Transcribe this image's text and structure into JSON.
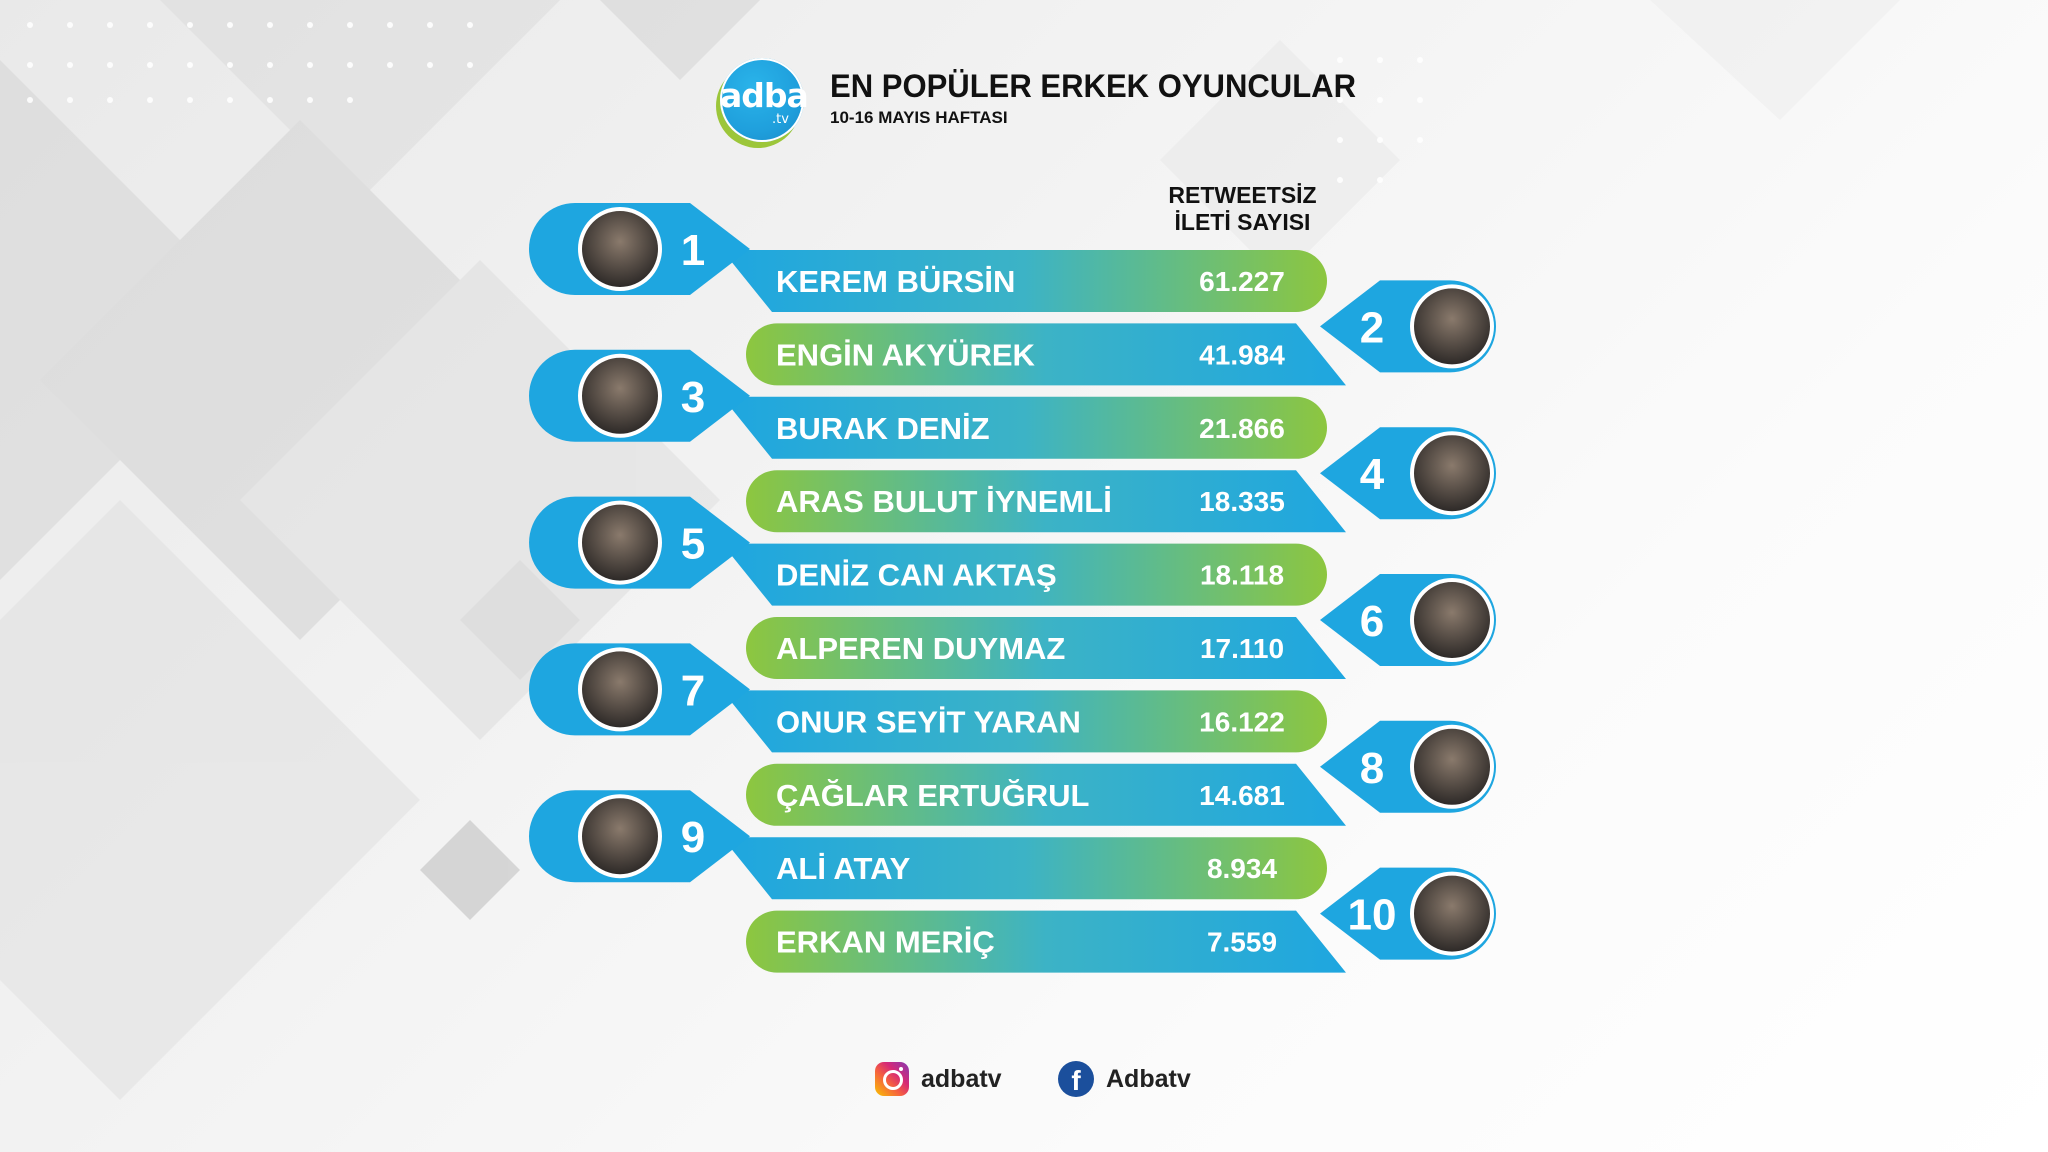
{
  "header": {
    "logo_text": "adba",
    "logo_sub": ".tv",
    "title": "EN POPÜLER ERKEK OYUNCULAR",
    "subtitle": "10-16 MAYIS HAFTASI",
    "column_header_line1": "RETWEETSİZ",
    "column_header_line2": "İLETİ SAYISI"
  },
  "chart_data": {
    "type": "table",
    "title": "EN POPÜLER ERKEK OYUNCULAR",
    "subtitle": "10-16 MAYIS HAFTASI",
    "value_label": "RETWEETSİZ İLETİ SAYISI",
    "rows": [
      {
        "rank": "1",
        "name": "KEREM BÜRSİN",
        "value": 61227,
        "value_text": "61.227"
      },
      {
        "rank": "2",
        "name": "ENGİN AKYÜREK",
        "value": 41984,
        "value_text": "41.984"
      },
      {
        "rank": "3",
        "name": "BURAK DENİZ",
        "value": 21866,
        "value_text": "21.866"
      },
      {
        "rank": "4",
        "name": "ARAS BULUT İYNEMLİ",
        "value": 18335,
        "value_text": "18.335"
      },
      {
        "rank": "5",
        "name": "DENİZ CAN AKTAŞ",
        "value": 18118,
        "value_text": "18.118"
      },
      {
        "rank": "6",
        "name": "ALPEREN DUYMAZ",
        "value": 17110,
        "value_text": "17.110"
      },
      {
        "rank": "7",
        "name": "ONUR SEYİT YARAN",
        "value": 16122,
        "value_text": "16.122"
      },
      {
        "rank": "8",
        "name": "ÇAĞLAR ERTUĞRUL",
        "value": 14681,
        "value_text": "14.681"
      },
      {
        "rank": "9",
        "name": "ALİ ATAY",
        "value": 8934,
        "value_text": "8.934"
      },
      {
        "rank": "10",
        "name": "ERKAN MERİÇ",
        "value": 7559,
        "value_text": "7.559"
      }
    ]
  },
  "colors": {
    "blue": "#1ea6e0",
    "green": "#8dc63f",
    "facebook": "#1b4f9c"
  },
  "footer": {
    "instagram_icon": "instagram-icon",
    "instagram_handle": "adbatv",
    "facebook_icon": "facebook-icon",
    "facebook_handle": "Adbatv"
  }
}
